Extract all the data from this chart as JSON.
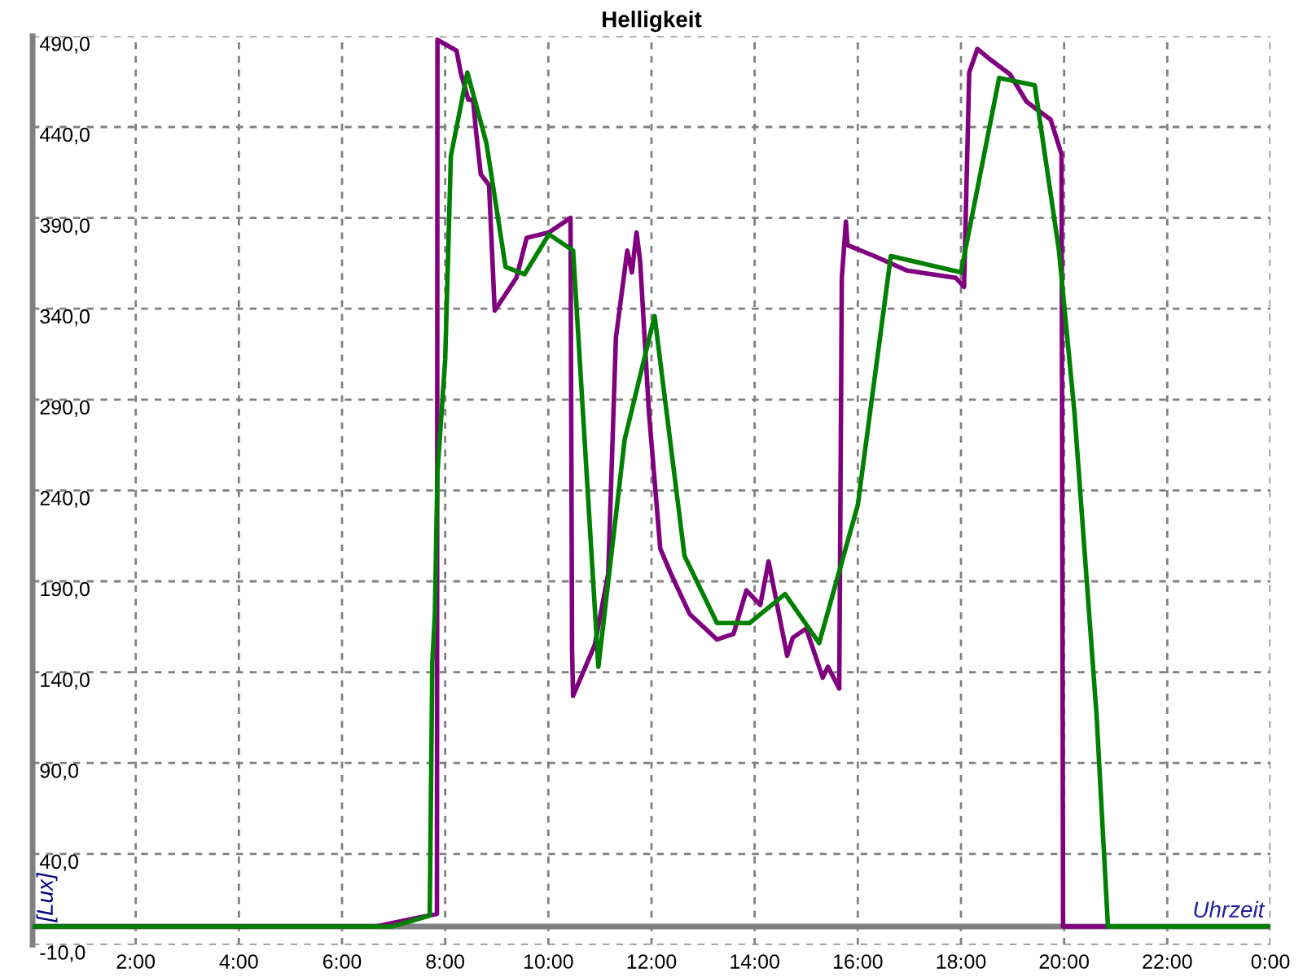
{
  "chart_data": {
    "type": "line",
    "title": "Helligkeit",
    "xlabel": "Uhrzeit",
    "ylabel": "[Lux]",
    "xlim": [
      0,
      24
    ],
    "xticks": [
      {
        "value": 2,
        "label": "2:00"
      },
      {
        "value": 4,
        "label": "4:00"
      },
      {
        "value": 6,
        "label": "6:00"
      },
      {
        "value": 8,
        "label": "8:00"
      },
      {
        "value": 10,
        "label": "10:00"
      },
      {
        "value": 12,
        "label": "12:00"
      },
      {
        "value": 14,
        "label": "14:00"
      },
      {
        "value": 16,
        "label": "16:00"
      },
      {
        "value": 18,
        "label": "18:00"
      },
      {
        "value": 20,
        "label": "20:00"
      },
      {
        "value": 22,
        "label": "22:00"
      },
      {
        "value": 24,
        "label": "0:00"
      }
    ],
    "ylim": [
      -10,
      490
    ],
    "yticks": [
      {
        "value": -10,
        "label": "-10,0"
      },
      {
        "value": 40,
        "label": "40,0"
      },
      {
        "value": 90,
        "label": "90,0"
      },
      {
        "value": 140,
        "label": "140,0"
      },
      {
        "value": 190,
        "label": "190,0"
      },
      {
        "value": 240,
        "label": "240,0"
      },
      {
        "value": 290,
        "label": "290,0"
      },
      {
        "value": 340,
        "label": "340,0"
      },
      {
        "value": 390,
        "label": "390,0"
      },
      {
        "value": 440,
        "label": "440,0"
      },
      {
        "value": 490,
        "label": "490,0"
      }
    ],
    "grid": true,
    "line_style": "solid",
    "marker": "none",
    "ref_lines": [
      {
        "axis": "y",
        "value": 0,
        "color": "#808080",
        "line_style": "solid"
      }
    ],
    "series": [
      {
        "color": "#800080",
        "x": [
          0,
          6.65,
          7.84,
          7.85,
          8.22,
          8.3,
          8.45,
          8.54,
          8.6,
          8.69,
          8.85,
          8.96,
          9.38,
          9.58,
          10.01,
          10.43,
          10.46,
          10.48,
          10.9,
          11.16,
          11.31,
          11.53,
          11.62,
          11.71,
          11.78,
          11.95,
          12.17,
          12.38,
          12.74,
          13.27,
          13.59,
          13.84,
          14.11,
          14.27,
          14.63,
          14.74,
          15.0,
          15.32,
          15.42,
          15.64,
          15.69,
          15.77,
          15.8,
          16.32,
          16.95,
          17.9,
          18.06,
          18.16,
          18.32,
          18.53,
          18.95,
          19.27,
          19.74,
          19.95,
          19.98,
          20.8
        ],
        "values": [
          0,
          0,
          7,
          488,
          482,
          470,
          455,
          455,
          437,
          414,
          408,
          339,
          357,
          379,
          382,
          390,
          152,
          127,
          155,
          194,
          324,
          372,
          360,
          382,
          366,
          283,
          208,
          194,
          172,
          158,
          161,
          185,
          177,
          201,
          149,
          159,
          164,
          137,
          143,
          131,
          357,
          388,
          375,
          369,
          361,
          357,
          352,
          470,
          483,
          478,
          469,
          454,
          444,
          425,
          0,
          0
        ]
      },
      {
        "color": "#008000",
        "x": [
          0,
          6.96,
          7.7,
          7.75,
          7.8,
          7.85,
          8.0,
          8.11,
          8.43,
          8.8,
          9.17,
          9.54,
          10.01,
          10.48,
          10.97,
          11.48,
          12.06,
          12.64,
          13.27,
          13.9,
          14.59,
          15.25,
          16.0,
          16.64,
          18.0,
          18.74,
          19.43,
          19.9,
          20.2,
          20.63,
          20.85,
          24
        ],
        "values": [
          0,
          0,
          6,
          145,
          172,
          250,
          312,
          424,
          470,
          431,
          363,
          359,
          381,
          372,
          143,
          268,
          336,
          204,
          167,
          167,
          183,
          156,
          232,
          369,
          360,
          467,
          463,
          372,
          283,
          116,
          0,
          0
        ]
      }
    ]
  }
}
